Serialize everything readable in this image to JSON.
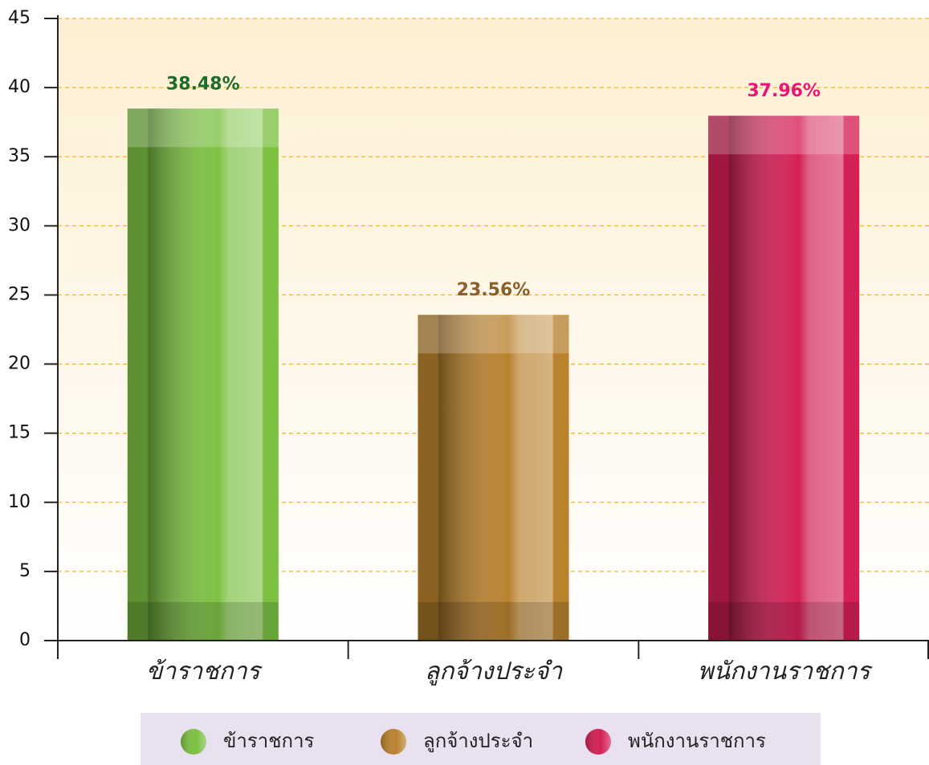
{
  "chart_data": {
    "type": "bar",
    "categories": [
      "ข้าราชการ",
      "ลูกจ้างประจำ",
      "พนักงานราชการ"
    ],
    "values": [
      38.48,
      23.56,
      37.96
    ],
    "value_labels": [
      "38.48%",
      "23.56%",
      "37.96%"
    ],
    "colors": [
      "#7cc142",
      "#b9822e",
      "#d42055"
    ],
    "label_colors": [
      "#1e6b2a",
      "#8c5e2a",
      "#e8157a"
    ],
    "ylim": [
      0,
      45
    ],
    "yticks": [
      0,
      5,
      10,
      15,
      20,
      25,
      30,
      35,
      40,
      45
    ],
    "grid": true,
    "legend": "bottom"
  }
}
